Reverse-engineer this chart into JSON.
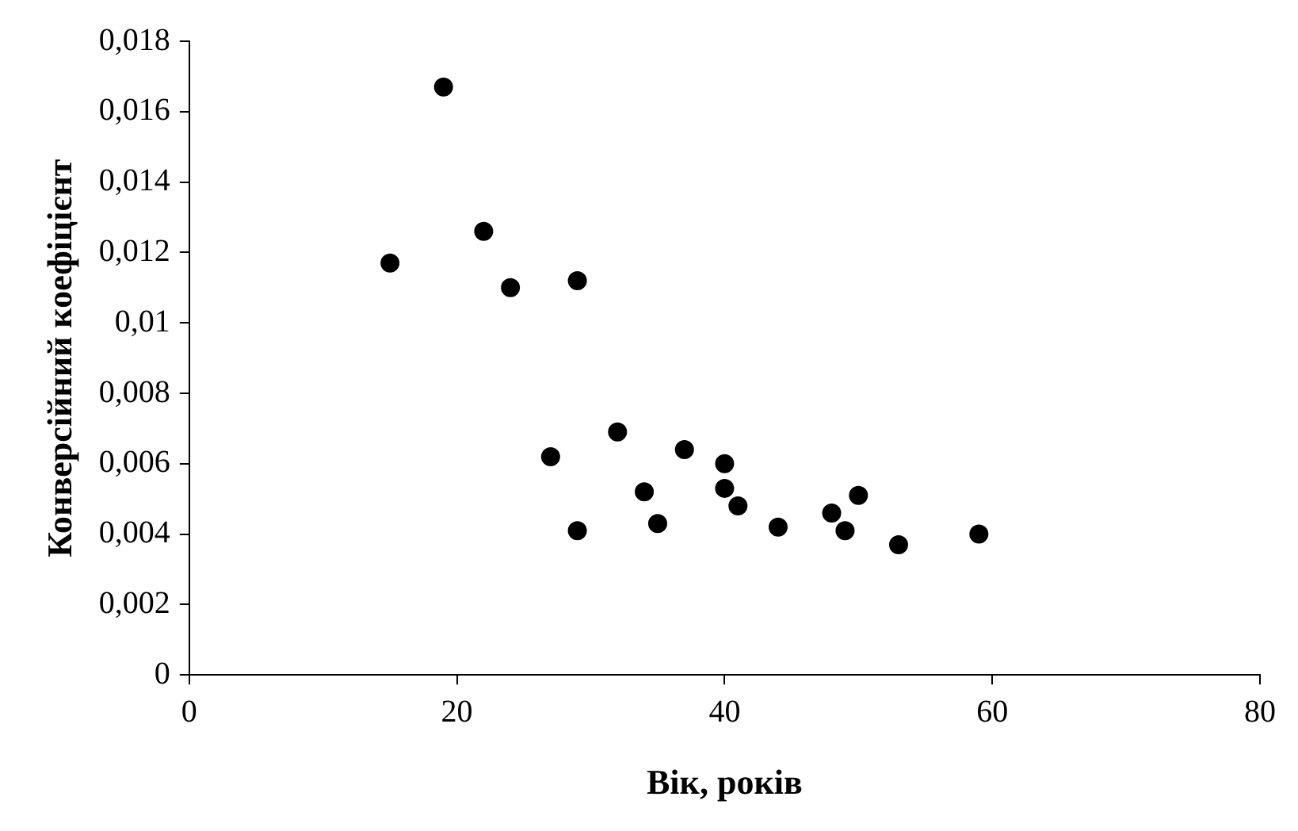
{
  "chart_data": {
    "type": "scatter",
    "xlabel": "Вік, років",
    "ylabel": "Конверсійний коефіцієнт",
    "x": [
      15,
      19,
      22,
      24,
      29,
      27,
      32,
      29,
      34,
      35,
      37,
      40,
      40,
      41,
      44,
      48,
      49,
      50,
      53,
      59
    ],
    "values": [
      0.0117,
      0.0167,
      0.0126,
      0.011,
      0.0112,
      0.0062,
      0.0069,
      0.0041,
      0.0052,
      0.0043,
      0.0064,
      0.006,
      0.0053,
      0.0048,
      0.0042,
      0.0046,
      0.0041,
      0.0051,
      0.0037,
      0.004
    ],
    "color": "#000000",
    "marker": "circle",
    "grid": false,
    "legend": false,
    "xlim": [
      0,
      80
    ],
    "xticks": [
      0,
      20,
      40,
      60,
      80
    ],
    "ylim": [
      0,
      0.018
    ],
    "yticks": [
      0,
      {
        "value": 0.002,
        "label": "0,002"
      },
      {
        "value": 0.004,
        "label": "0,004"
      },
      {
        "value": 0.006,
        "label": "0,006"
      },
      {
        "value": 0.008,
        "label": "0,008"
      },
      {
        "value": 0.01,
        "label": "0,01"
      },
      {
        "value": 0.012,
        "label": "0,012"
      },
      {
        "value": 0.014,
        "label": "0,014"
      },
      {
        "value": 0.016,
        "label": "0,016"
      },
      {
        "value": 0.018,
        "label": "0,018"
      }
    ]
  }
}
